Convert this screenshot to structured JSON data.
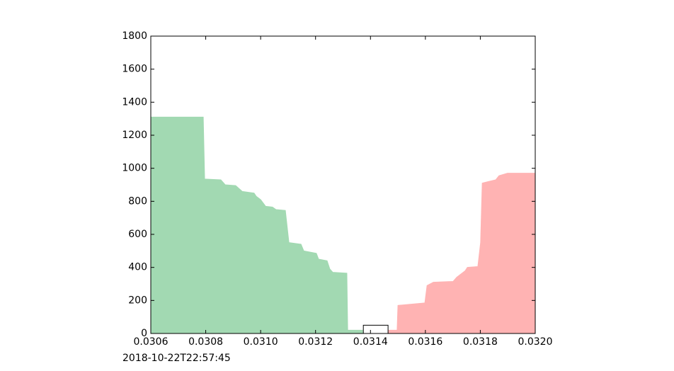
{
  "chart_data": {
    "type": "depth",
    "x_label": "2018-10-22T22:57:45",
    "series": [
      {
        "color": "#a2d9b2",
        "x": [
          0.0306,
          0.030791,
          0.030796,
          0.030855,
          0.030871,
          0.030909,
          0.030933,
          0.030976,
          0.030984,
          0.031,
          0.031018,
          0.031043,
          0.031056,
          0.03109,
          0.031103,
          0.031147,
          0.031157,
          0.031203,
          0.031211,
          0.031242,
          0.031252,
          0.031263,
          0.031314,
          0.031317,
          0.031371
        ],
        "values": [
          1310,
          1310,
          935,
          930,
          900,
          895,
          860,
          850,
          830,
          810,
          770,
          765,
          750,
          745,
          550,
          540,
          500,
          485,
          450,
          440,
          390,
          370,
          365,
          20,
          20
        ]
      },
      {
        "color": "#ffb3b3",
        "x": [
          0.031466,
          0.031497,
          0.0315,
          0.031598,
          0.031606,
          0.031629,
          0.031701,
          0.031714,
          0.031745,
          0.031753,
          0.031791,
          0.031801,
          0.031807,
          0.03183,
          0.031856,
          0.031868,
          0.031899,
          0.032
        ],
        "values": [
          20,
          20,
          170,
          185,
          290,
          310,
          315,
          340,
          380,
          400,
          405,
          550,
          910,
          920,
          930,
          955,
          970,
          970
        ]
      }
    ],
    "spread_box": {
      "x": [
        0.031374,
        0.031464
      ],
      "value": 50
    },
    "xlim": [
      0.0306,
      0.032
    ],
    "xticks": [
      0.0306,
      0.0308,
      {
        "value": 0.031,
        "label": "0.0310"
      },
      0.0312,
      0.0314,
      0.0316,
      0.0318,
      {
        "value": 0.032,
        "label": "0.0320"
      }
    ],
    "ylim": [
      0,
      1800
    ],
    "yticks": [
      0,
      200,
      400,
      600,
      800,
      1000,
      1200,
      1400,
      1600,
      1800
    ]
  }
}
